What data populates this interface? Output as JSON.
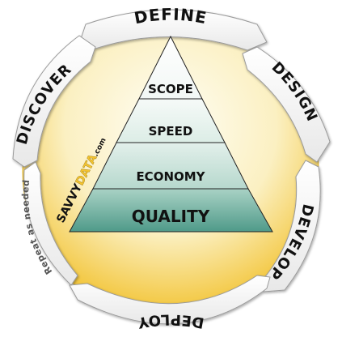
{
  "cycle": {
    "steps": [
      {
        "label": "DEFINE"
      },
      {
        "label": "DESIGN"
      },
      {
        "label": "DEVELOP"
      },
      {
        "label": "DEPLOY"
      },
      {
        "label": "DISCOVER"
      }
    ],
    "repeat_note": "Repeat as needed"
  },
  "pyramid": {
    "tiers": [
      {
        "label": "SCOPE"
      },
      {
        "label": "SPEED"
      },
      {
        "label": "ECONOMY"
      },
      {
        "label": "QUALITY"
      }
    ]
  },
  "brand": {
    "name_part1": "SAVVY",
    "name_part2": "DATA",
    "suffix": ".com"
  },
  "colors": {
    "disc_center": "#fffdf0",
    "disc_edge": "#f4c431",
    "tier_top": "#ffffff",
    "tier_mid": "#d6ede4",
    "tier_bottom": "#5aa595",
    "banner_fill": "#f5f5f5",
    "banner_stroke": "#9a9a9a"
  }
}
